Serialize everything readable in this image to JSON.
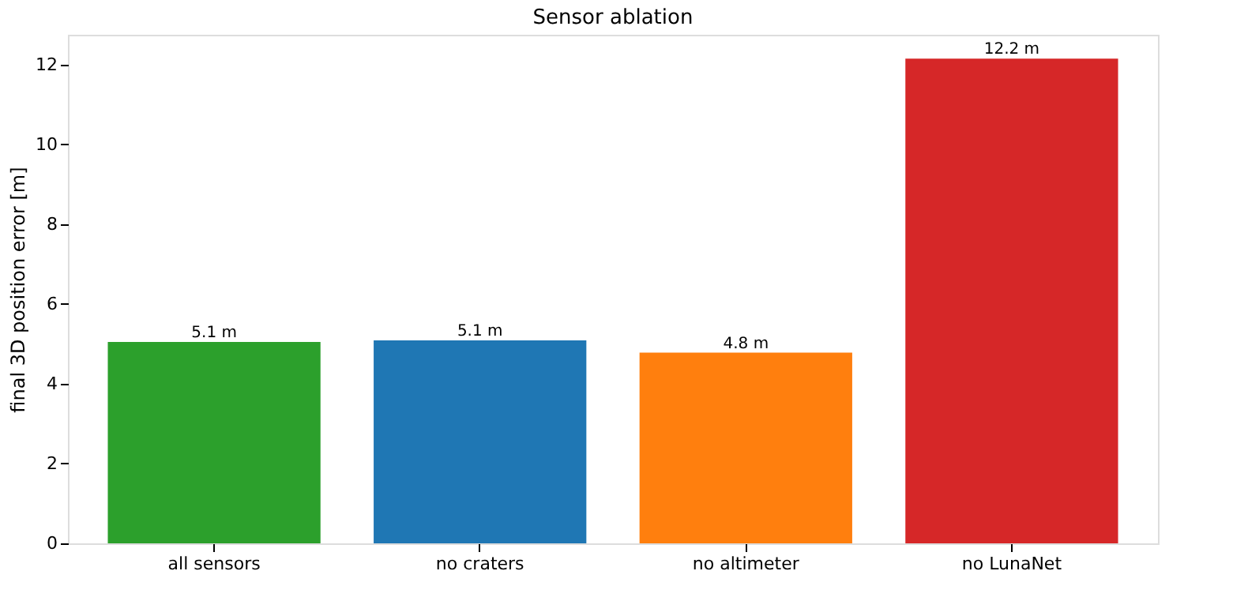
{
  "chart_data": {
    "type": "bar",
    "title": "Sensor ablation",
    "ylabel": "final 3D position error [m]",
    "categories": [
      "all sensors",
      "no craters",
      "no altimeter",
      "no LunaNet"
    ],
    "values": [
      5.05,
      5.09,
      4.78,
      12.15
    ],
    "colors": [
      "#2ca02c",
      "#1f77b4",
      "#ff7f0e",
      "#d62728"
    ],
    "value_labels": [
      "5.1 m",
      "5.1 m",
      "4.8 m",
      "12.2 m"
    ],
    "ylim": [
      0,
      12.75
    ],
    "yticks": [
      0,
      2,
      4,
      6,
      8,
      10,
      12
    ],
    "grid": false
  }
}
